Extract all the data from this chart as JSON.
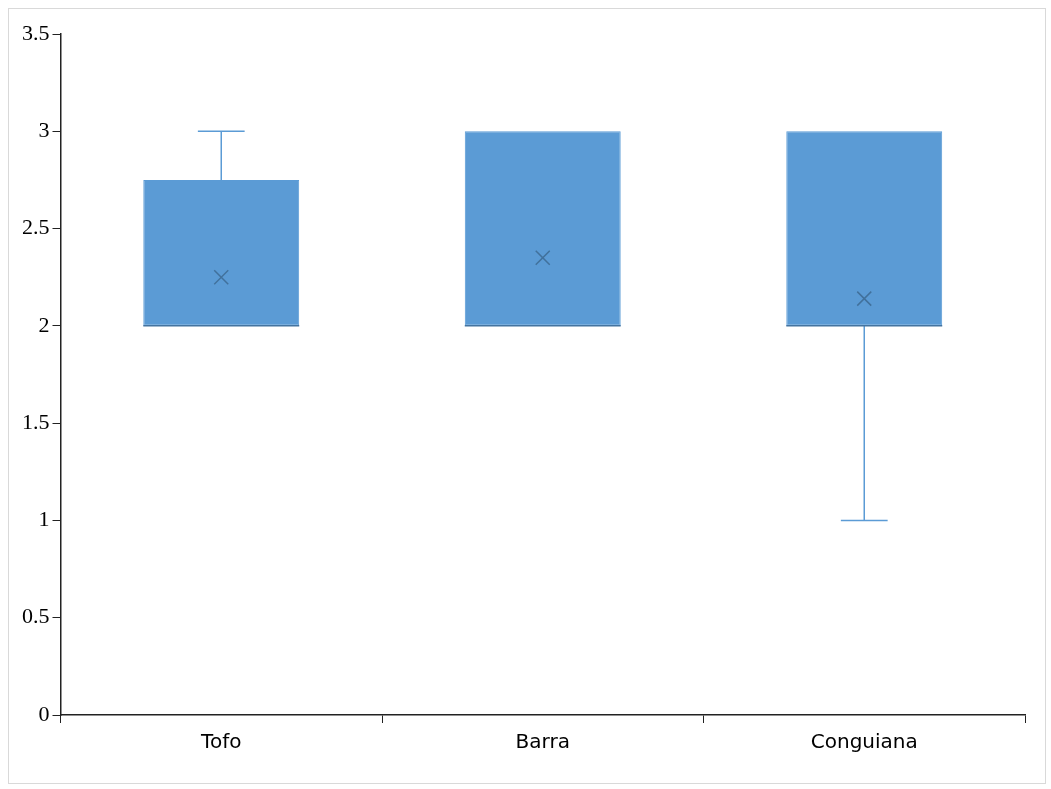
{
  "chart_data": {
    "type": "box",
    "categories": [
      "Tofo",
      "Barra",
      "Conguiana"
    ],
    "series": [
      {
        "color": "#5b9bd5",
        "boxes": [
          {
            "low": 2,
            "q1": 2,
            "median": 2,
            "q3": 2.75,
            "high": 3,
            "mean": 2.25
          },
          {
            "low": 2,
            "q1": 2,
            "median": 2,
            "q3": 3,
            "high": 3,
            "mean": 2.35
          },
          {
            "low": 1,
            "q1": 2,
            "median": 2,
            "q3": 3,
            "high": 3,
            "mean": 2.14
          }
        ]
      }
    ],
    "ylim": [
      0,
      3.5
    ],
    "yticks": [
      0,
      0.5,
      1,
      1.5,
      2,
      2.5,
      3,
      3.5
    ],
    "grid": false,
    "legend": false
  }
}
